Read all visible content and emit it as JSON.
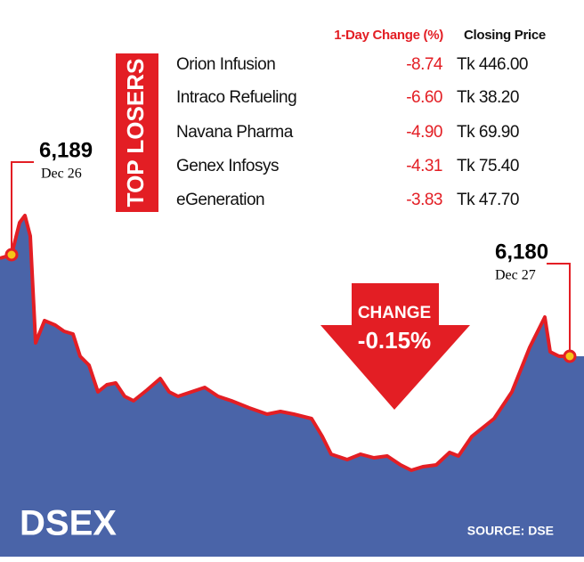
{
  "graphic": {
    "title": "DSEX",
    "source": "SOURCE: DSE",
    "start": {
      "value": "6,189",
      "date": "Dec 26"
    },
    "end": {
      "value": "6,180",
      "date": "Dec 27"
    },
    "change": {
      "label": "CHANGE",
      "value": "-0.15%"
    },
    "losers": {
      "label": "TOP LOSERS",
      "header": [
        "1-Day Change (%)",
        "Closing Price"
      ],
      "rows": [
        [
          "Orion Infusion",
          "-8.74",
          "Tk 446.00"
        ],
        [
          "Intraco Refueling",
          "-6.60",
          "Tk 38.20"
        ],
        [
          "Navana Pharma",
          "-4.90",
          "Tk 69.90"
        ],
        [
          "Genex Infosys",
          "-4.31",
          "Tk 75.40"
        ],
        [
          "eGeneration",
          "-3.83",
          "Tk 47.70"
        ]
      ]
    }
  }
}
